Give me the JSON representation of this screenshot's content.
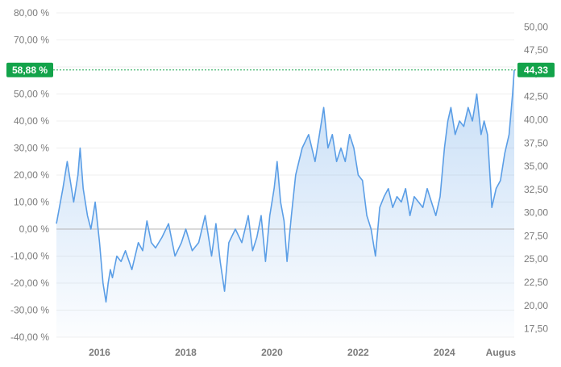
{
  "chart_data": {
    "type": "area",
    "title": "",
    "xlabel": "",
    "ylabel": "",
    "x_ticks": [
      "2016",
      "2018",
      "2020",
      "2022",
      "2024",
      "Augus"
    ],
    "x_tick_years": [
      2016,
      2018,
      2020,
      2022,
      2024,
      2025.62
    ],
    "xlim": [
      2015.0,
      2025.62
    ],
    "left_axis": {
      "ticks": [
        "80,00 %",
        "70,00 %",
        "60,00 %",
        "50,00 %",
        "40,00 %",
        "30,00 %",
        "20,00 %",
        "10,00 %",
        "0,00 %",
        "-10,00 %",
        "-20,00 %",
        "-30,00 %",
        "-40,00 %"
      ],
      "values": [
        80,
        70,
        60,
        50,
        40,
        30,
        20,
        10,
        0,
        -10,
        -20,
        -30,
        -40
      ],
      "ylim": [
        -40,
        80
      ]
    },
    "right_axis": {
      "ticks": [
        "50,00",
        "47,50",
        "45,00",
        "42,50",
        "40,00",
        "37,50",
        "35,00",
        "32,50",
        "30,00",
        "27,50",
        "25,00",
        "22,50",
        "20,00",
        "17,50"
      ],
      "values": [
        50,
        47.5,
        45,
        42.5,
        40,
        37.5,
        35,
        32.5,
        30,
        27.5,
        25,
        22.5,
        20,
        17.5
      ],
      "ylim": [
        16.6,
        51.5
      ]
    },
    "baseline_pct": 0,
    "current_pct_label": "58,88 %",
    "current_price_label": "44,33",
    "current_pct": 58.88,
    "series": [
      {
        "x": [
          2015.0,
          2015.15,
          2015.25,
          2015.4,
          2015.5,
          2015.55,
          2015.62,
          2015.72,
          2015.8,
          2015.9,
          2016.0,
          2016.08,
          2016.15,
          2016.2,
          2016.25,
          2016.3,
          2016.4,
          2016.5,
          2016.6,
          2016.75,
          2016.9,
          2017.0,
          2017.1,
          2017.2,
          2017.3,
          2017.45,
          2017.6,
          2017.75,
          2017.9,
          2018.0,
          2018.15,
          2018.3,
          2018.45,
          2018.6,
          2018.7,
          2018.8,
          2018.9,
          2019.0,
          2019.15,
          2019.3,
          2019.45,
          2019.55,
          2019.65,
          2019.75,
          2019.85,
          2019.95,
          2020.05,
          2020.12,
          2020.2,
          2020.28,
          2020.35,
          2020.45,
          2020.55,
          2020.7,
          2020.85,
          2021.0,
          2021.1,
          2021.2,
          2021.3,
          2021.4,
          2021.5,
          2021.6,
          2021.7,
          2021.8,
          2021.9,
          2022.0,
          2022.1,
          2022.2,
          2022.3,
          2022.4,
          2022.5,
          2022.6,
          2022.7,
          2022.8,
          2022.9,
          2023.0,
          2023.1,
          2023.2,
          2023.3,
          2023.4,
          2023.5,
          2023.6,
          2023.7,
          2023.8,
          2023.9,
          2024.0,
          2024.08,
          2024.15,
          2024.25,
          2024.35,
          2024.45,
          2024.55,
          2024.65,
          2024.75,
          2024.85,
          2024.92,
          2025.0,
          2025.1,
          2025.2,
          2025.3,
          2025.4,
          2025.5,
          2025.58,
          2025.62
        ],
        "values": [
          2,
          15,
          25,
          10,
          20,
          30,
          15,
          5,
          0,
          10,
          -5,
          -20,
          -27,
          -20,
          -15,
          -18,
          -10,
          -12,
          -8,
          -15,
          -5,
          -8,
          3,
          -5,
          -7,
          -3,
          2,
          -10,
          -5,
          0,
          -8,
          -5,
          5,
          -10,
          2,
          -12,
          -23,
          -5,
          0,
          -5,
          5,
          -8,
          -3,
          5,
          -12,
          5,
          15,
          25,
          10,
          3,
          -12,
          5,
          20,
          30,
          35,
          25,
          35,
          45,
          30,
          35,
          25,
          30,
          25,
          35,
          30,
          20,
          18,
          5,
          0,
          -10,
          8,
          12,
          15,
          8,
          12,
          10,
          15,
          5,
          12,
          10,
          8,
          15,
          10,
          5,
          12,
          30,
          40,
          45,
          35,
          40,
          38,
          45,
          40,
          50,
          35,
          40,
          35,
          8,
          15,
          18,
          28,
          35,
          50,
          58.88
        ]
      }
    ],
    "colors": {
      "line": "#5b9ee6",
      "badge": "#13a34a",
      "zero_line": "#b5b5b5",
      "grid": "#efefef"
    }
  }
}
